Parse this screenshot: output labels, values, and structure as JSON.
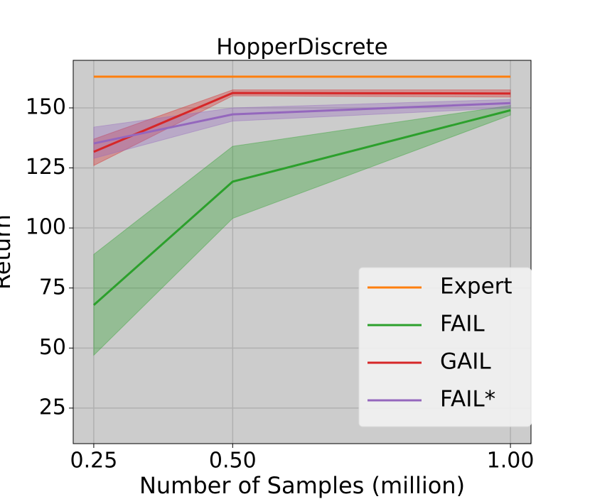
{
  "chart_data": {
    "type": "line",
    "title": "HopperDiscrete",
    "x_label": "Number of Samples (million)",
    "y_label": "Return",
    "x": [
      0.25,
      0.5,
      1.0
    ],
    "xlim": [
      0.213,
      1.037
    ],
    "xticks": [
      0.25,
      {
        "value": 0.5,
        "label": "0.50"
      },
      {
        "value": 1.0,
        "label": "1.00"
      }
    ],
    "ylim": [
      10.2,
      169.8
    ],
    "yticks": [
      25,
      50,
      75,
      100,
      125,
      150
    ],
    "grid": true,
    "legend_position": "lower right",
    "series": [
      {
        "name": "Expert",
        "color": "#ff7f0e",
        "values": [
          163,
          163,
          163
        ]
      },
      {
        "name": "FAIL",
        "color": "#2ca02c",
        "values": [
          67.9,
          119.3,
          149
        ],
        "lower": [
          47,
          104,
          147
        ],
        "upper": [
          89,
          134,
          151
        ]
      },
      {
        "name": "GAIL",
        "color": "#d62728",
        "values": [
          131.7,
          156.2,
          156
        ],
        "lower": [
          126,
          155,
          154.5
        ],
        "upper": [
          137,
          157.5,
          157.5
        ]
      },
      {
        "name": "FAIL*",
        "color": "#9467bd",
        "values": [
          135.2,
          147.3,
          152
        ],
        "lower": [
          129,
          144.5,
          150
        ],
        "upper": [
          142,
          150,
          153.5
        ]
      }
    ]
  }
}
